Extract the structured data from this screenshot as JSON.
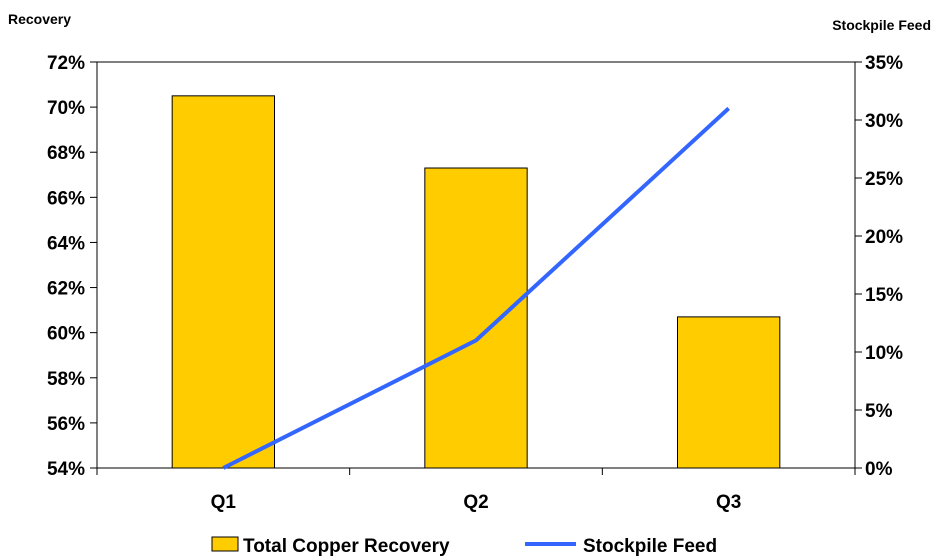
{
  "chart_data": {
    "type": "bar",
    "categories": [
      "Q1",
      "Q2",
      "Q3"
    ],
    "series": [
      {
        "name": "Total Copper Recovery",
        "type": "bar",
        "axis": "left",
        "values": [
          70.5,
          67.3,
          60.7
        ],
        "color": "#FFCC00"
      },
      {
        "name": "Stockpile Feed",
        "type": "line",
        "axis": "right",
        "values": [
          0,
          11,
          31
        ],
        "color": "#3366FF"
      }
    ],
    "ylabel_left": "Recovery",
    "ylabel_right": "Stockpile Feed",
    "ylim_left": [
      54,
      72
    ],
    "ylim_right": [
      0,
      35
    ],
    "yticks_left": [
      "54%",
      "56%",
      "58%",
      "60%",
      "62%",
      "64%",
      "66%",
      "68%",
      "70%",
      "72%"
    ],
    "yticks_right": [
      "0%",
      "5%",
      "10%",
      "15%",
      "20%",
      "25%",
      "30%",
      "35%"
    ],
    "grid": false,
    "legend_position": "bottom"
  }
}
